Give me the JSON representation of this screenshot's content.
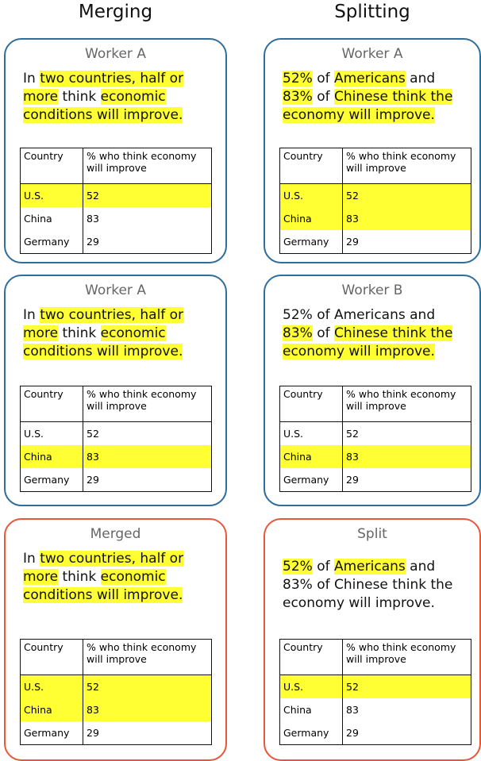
{
  "columns": [
    {
      "title": "Merging",
      "panels": [
        {
          "label": "Worker A",
          "kind": "worker",
          "sentence": [
            {
              "text": "In ",
              "highlight": false
            },
            {
              "text": "two countries, half or more",
              "highlight": true
            },
            {
              "text": " think ",
              "highlight": false
            },
            {
              "text": "economic conditions will improve.",
              "highlight": true
            }
          ],
          "table": {
            "header": [
              "Country",
              "% who think economy will improve"
            ],
            "rows": [
              {
                "cells": [
                  "U.S.",
                  52
                ],
                "highlight": true
              },
              {
                "cells": [
                  "China",
                  83
                ],
                "highlight": false
              },
              {
                "cells": [
                  "Germany",
                  29
                ],
                "highlight": false
              }
            ]
          }
        },
        {
          "label": "Worker A",
          "kind": "worker",
          "sentence": [
            {
              "text": "In ",
              "highlight": false
            },
            {
              "text": "two countries, half or more",
              "highlight": true
            },
            {
              "text": " think ",
              "highlight": false
            },
            {
              "text": "economic conditions will improve.",
              "highlight": true
            }
          ],
          "table": {
            "header": [
              "Country",
              "% who think economy will improve"
            ],
            "rows": [
              {
                "cells": [
                  "U.S.",
                  52
                ],
                "highlight": false
              },
              {
                "cells": [
                  "China",
                  83
                ],
                "highlight": true
              },
              {
                "cells": [
                  "Germany",
                  29
                ],
                "highlight": false
              }
            ]
          }
        },
        {
          "label": "Merged",
          "kind": "result",
          "sentence": [
            {
              "text": "In ",
              "highlight": false
            },
            {
              "text": "two countries, half or more",
              "highlight": true
            },
            {
              "text": " think ",
              "highlight": false
            },
            {
              "text": "economic conditions will improve.",
              "highlight": true
            }
          ],
          "table": {
            "header": [
              "Country",
              "% who think economy will improve"
            ],
            "rows": [
              {
                "cells": [
                  "U.S.",
                  52
                ],
                "highlight": true
              },
              {
                "cells": [
                  "China",
                  83
                ],
                "highlight": true
              },
              {
                "cells": [
                  "Germany",
                  29
                ],
                "highlight": false
              }
            ]
          }
        }
      ]
    },
    {
      "title": "Splitting",
      "panels": [
        {
          "label": "Worker A",
          "kind": "worker",
          "sentence": [
            {
              "text": "52%",
              "highlight": true
            },
            {
              "text": " of ",
              "highlight": false
            },
            {
              "text": "Americans",
              "highlight": true
            },
            {
              "text": " and ",
              "highlight": false
            },
            {
              "text": "83%",
              "highlight": true
            },
            {
              "text": " of ",
              "highlight": false
            },
            {
              "text": "Chinese think the economy will improve.",
              "highlight": true
            }
          ],
          "table": {
            "header": [
              "Country",
              "% who think economy will improve"
            ],
            "rows": [
              {
                "cells": [
                  "U.S.",
                  52
                ],
                "highlight": true
              },
              {
                "cells": [
                  "China",
                  83
                ],
                "highlight": true
              },
              {
                "cells": [
                  "Germany",
                  29
                ],
                "highlight": false
              }
            ]
          }
        },
        {
          "label": "Worker B",
          "kind": "worker",
          "sentence": [
            {
              "text": "52% of Americans and ",
              "highlight": false
            },
            {
              "text": "83%",
              "highlight": true
            },
            {
              "text": " of ",
              "highlight": false
            },
            {
              "text": "Chinese think the economy will improve.",
              "highlight": true
            }
          ],
          "table": {
            "header": [
              "Country",
              "% who think economy will improve"
            ],
            "rows": [
              {
                "cells": [
                  "U.S.",
                  52
                ],
                "highlight": false
              },
              {
                "cells": [
                  "China",
                  83
                ],
                "highlight": true
              },
              {
                "cells": [
                  "Germany",
                  29
                ],
                "highlight": false
              }
            ]
          }
        },
        {
          "label": "Split",
          "kind": "result",
          "sentence": [
            {
              "text": "52%",
              "highlight": true
            },
            {
              "text": " of ",
              "highlight": false
            },
            {
              "text": "Americans",
              "highlight": true
            },
            {
              "text": " and 83% of Chinese think the economy will improve.",
              "highlight": false
            }
          ],
          "table": {
            "header": [
              "Country",
              "% who think economy will improve"
            ],
            "rows": [
              {
                "cells": [
                  "U.S.",
                  52
                ],
                "highlight": true
              },
              {
                "cells": [
                  "China",
                  83
                ],
                "highlight": false
              },
              {
                "cells": [
                  "Germany",
                  29
                ],
                "highlight": false
              }
            ]
          }
        }
      ]
    }
  ]
}
